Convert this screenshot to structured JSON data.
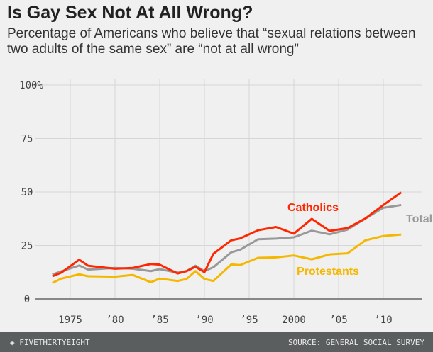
{
  "chart_data": {
    "type": "line",
    "title": "Is Gay Sex Not At All Wrong?",
    "subtitle": "Percentage of Americans who believe that “sexual relations between two adults of the same sex” are “not at all wrong”",
    "xlabel": "",
    "ylabel": "",
    "ylim": [
      0,
      100
    ],
    "xlim": [
      1972,
      2014
    ],
    "yticks": [
      0,
      25,
      50,
      75,
      100
    ],
    "ytick_labels": [
      "0",
      "25",
      "50",
      "75",
      "100%"
    ],
    "xticks": [
      1975,
      1980,
      1985,
      1990,
      1995,
      2000,
      2005,
      2010
    ],
    "xtick_labels": [
      "1975",
      "’80",
      "’85",
      "’90",
      "’95",
      "2000",
      "’05",
      "’10"
    ],
    "grid": true,
    "x": [
      1973,
      1974,
      1976,
      1977,
      1980,
      1982,
      1984,
      1985,
      1987,
      1988,
      1989,
      1990,
      1991,
      1993,
      1994,
      1996,
      1998,
      2000,
      2002,
      2004,
      2006,
      2008,
      2010,
      2012
    ],
    "series": [
      {
        "name": "Total",
        "color": "#999999",
        "values": [
          11.4,
          12.9,
          15.6,
          13.7,
          14.5,
          14.1,
          13,
          13.9,
          12.3,
          13,
          15.5,
          13,
          14.8,
          21.8,
          23,
          27.9,
          28.2,
          28.8,
          31.9,
          30.2,
          32.4,
          37.6,
          42.6,
          43.9
        ]
      },
      {
        "name": "Protestants",
        "color": "#f5b800",
        "values": [
          7.5,
          9.5,
          11.5,
          10.6,
          10.4,
          11.2,
          7.8,
          9.5,
          8.4,
          9.3,
          13,
          9.3,
          8.4,
          16.1,
          15.8,
          19.2,
          19.4,
          20.3,
          18.5,
          20.8,
          21.3,
          27.4,
          29.4,
          30.1
        ]
      },
      {
        "name": "Catholics",
        "color": "#ff2700",
        "values": [
          10.6,
          12.3,
          18.3,
          15.5,
          14.1,
          14.5,
          16.3,
          16,
          11.9,
          13,
          15,
          12.5,
          21.1,
          27.4,
          28.3,
          32.1,
          33.6,
          30.5,
          37.4,
          31.8,
          33.1,
          37.6,
          43.9,
          49.8
        ]
      }
    ]
  },
  "footer": {
    "brand": "FIVETHIRTYEIGHT",
    "source": "SOURCE: GENERAL SOCIAL SURVEY"
  },
  "colors": {
    "background": "#f0f0f0",
    "footer": "#5b5e5e"
  }
}
